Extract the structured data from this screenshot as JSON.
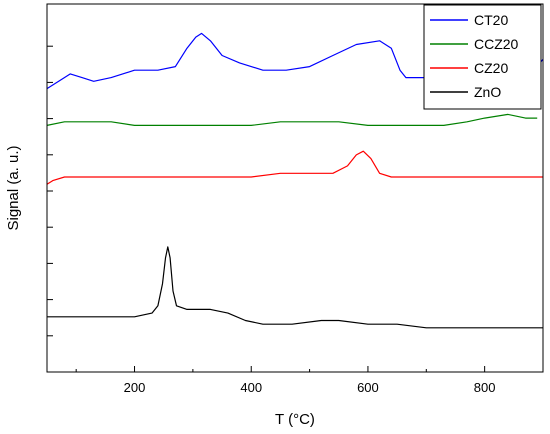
{
  "chart_data": {
    "type": "line",
    "xlabel": "T (°C)",
    "ylabel": "Signal (a. u.)",
    "xlim": [
      50,
      900
    ],
    "ylim": [
      0,
      1
    ],
    "x_ticks": [
      200,
      400,
      600,
      800
    ],
    "y_ticks": "unlabeled",
    "grid": false,
    "legend_position": "top-right",
    "series": [
      {
        "name": "CT20",
        "color": "#0000ff",
        "points": [
          [
            50,
            0.77
          ],
          [
            70,
            0.79
          ],
          [
            90,
            0.81
          ],
          [
            110,
            0.8
          ],
          [
            130,
            0.79
          ],
          [
            160,
            0.8
          ],
          [
            200,
            0.82
          ],
          [
            240,
            0.82
          ],
          [
            270,
            0.83
          ],
          [
            290,
            0.88
          ],
          [
            305,
            0.91
          ],
          [
            315,
            0.92
          ],
          [
            330,
            0.9
          ],
          [
            350,
            0.86
          ],
          [
            380,
            0.84
          ],
          [
            420,
            0.82
          ],
          [
            460,
            0.82
          ],
          [
            500,
            0.83
          ],
          [
            540,
            0.86
          ],
          [
            580,
            0.89
          ],
          [
            620,
            0.9
          ],
          [
            640,
            0.88
          ],
          [
            655,
            0.82
          ],
          [
            665,
            0.8
          ],
          [
            700,
            0.8
          ],
          [
            750,
            0.81
          ],
          [
            800,
            0.81
          ],
          [
            850,
            0.82
          ],
          [
            880,
            0.82
          ],
          [
            895,
            0.84
          ],
          [
            900,
            0.85
          ]
        ]
      },
      {
        "name": "CCZ20",
        "color": "#008000",
        "points": [
          [
            50,
            0.67
          ],
          [
            80,
            0.68
          ],
          [
            120,
            0.68
          ],
          [
            160,
            0.68
          ],
          [
            200,
            0.67
          ],
          [
            250,
            0.67
          ],
          [
            300,
            0.67
          ],
          [
            350,
            0.67
          ],
          [
            400,
            0.67
          ],
          [
            450,
            0.68
          ],
          [
            500,
            0.68
          ],
          [
            550,
            0.68
          ],
          [
            600,
            0.67
          ],
          [
            650,
            0.67
          ],
          [
            700,
            0.67
          ],
          [
            730,
            0.67
          ],
          [
            770,
            0.68
          ],
          [
            800,
            0.69
          ],
          [
            840,
            0.7
          ],
          [
            870,
            0.69
          ],
          [
            890,
            0.69
          ]
        ]
      },
      {
        "name": "CZ20",
        "color": "#ff0000",
        "points": [
          [
            50,
            0.51
          ],
          [
            60,
            0.52
          ],
          [
            80,
            0.53
          ],
          [
            150,
            0.53
          ],
          [
            250,
            0.53
          ],
          [
            350,
            0.53
          ],
          [
            400,
            0.53
          ],
          [
            450,
            0.54
          ],
          [
            500,
            0.54
          ],
          [
            540,
            0.54
          ],
          [
            565,
            0.56
          ],
          [
            580,
            0.59
          ],
          [
            592,
            0.6
          ],
          [
            605,
            0.58
          ],
          [
            620,
            0.54
          ],
          [
            640,
            0.53
          ],
          [
            700,
            0.53
          ],
          [
            800,
            0.53
          ],
          [
            900,
            0.53
          ]
        ]
      },
      {
        "name": "ZnO",
        "color": "#000000",
        "points": [
          [
            50,
            0.15
          ],
          [
            100,
            0.15
          ],
          [
            150,
            0.15
          ],
          [
            200,
            0.15
          ],
          [
            230,
            0.16
          ],
          [
            240,
            0.18
          ],
          [
            248,
            0.24
          ],
          [
            253,
            0.31
          ],
          [
            257,
            0.34
          ],
          [
            261,
            0.31
          ],
          [
            266,
            0.22
          ],
          [
            272,
            0.18
          ],
          [
            290,
            0.17
          ],
          [
            330,
            0.17
          ],
          [
            360,
            0.16
          ],
          [
            390,
            0.14
          ],
          [
            420,
            0.13
          ],
          [
            470,
            0.13
          ],
          [
            520,
            0.14
          ],
          [
            550,
            0.14
          ],
          [
            600,
            0.13
          ],
          [
            650,
            0.13
          ],
          [
            700,
            0.12
          ],
          [
            750,
            0.12
          ],
          [
            800,
            0.12
          ],
          [
            850,
            0.12
          ],
          [
            900,
            0.12
          ]
        ]
      }
    ]
  }
}
